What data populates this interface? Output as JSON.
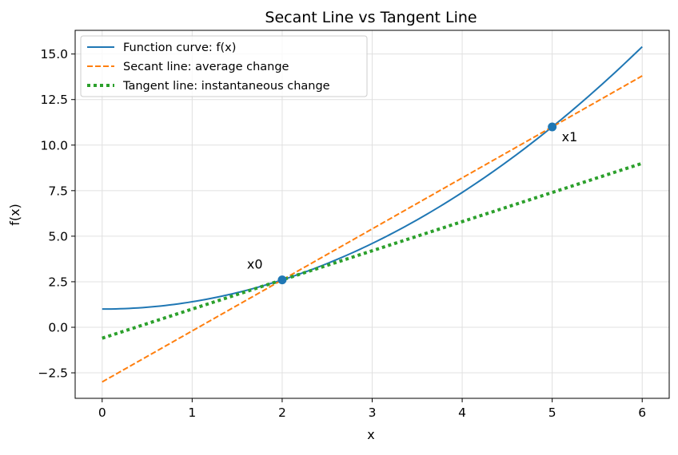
{
  "chart_data": {
    "type": "line",
    "title": "Secant Line vs Tangent Line",
    "xlabel": "x",
    "ylabel": "f(x)",
    "xlim": [
      -0.3,
      6.3
    ],
    "ylim": [
      -3.9,
      16.3
    ],
    "x_ticks": [
      0,
      1,
      2,
      3,
      4,
      5,
      6
    ],
    "x_tick_labels": [
      "0",
      "1",
      "2",
      "3",
      "4",
      "5",
      "6"
    ],
    "y_ticks": [
      -2.5,
      0.0,
      2.5,
      5.0,
      7.5,
      10.0,
      12.5,
      15.0
    ],
    "y_tick_labels": [
      "−2.5",
      "0.0",
      "2.5",
      "5.0",
      "7.5",
      "10.0",
      "12.5",
      "15.0"
    ],
    "grid": true,
    "legend_position": "top-left",
    "series": [
      {
        "name": "Function curve: f(x)",
        "style": "solid",
        "color": "#1f77b4",
        "x": [
          0,
          0.5,
          1,
          1.5,
          2,
          2.5,
          3,
          3.5,
          4,
          4.5,
          5,
          5.5,
          6
        ],
        "y": [
          1.0,
          1.1,
          1.4,
          1.9,
          2.6,
          3.5,
          4.6,
          5.9,
          7.4,
          9.1,
          11.0,
          13.1,
          15.4
        ]
      },
      {
        "name": "Secant line: average change",
        "style": "dashed",
        "color": "#ff7f0e",
        "x": [
          0,
          6
        ],
        "y": [
          -3.0,
          13.8
        ]
      },
      {
        "name": "Tangent line: instantaneous change",
        "style": "dotted",
        "color": "#2ca02c",
        "x": [
          0,
          6
        ],
        "y": [
          -0.6,
          9.0
        ]
      }
    ],
    "points": [
      {
        "label": "x0",
        "x": 2,
        "y": 2.6,
        "color": "#1f77b4"
      },
      {
        "label": "x1",
        "x": 5,
        "y": 11.0,
        "color": "#1f77b4"
      }
    ]
  }
}
